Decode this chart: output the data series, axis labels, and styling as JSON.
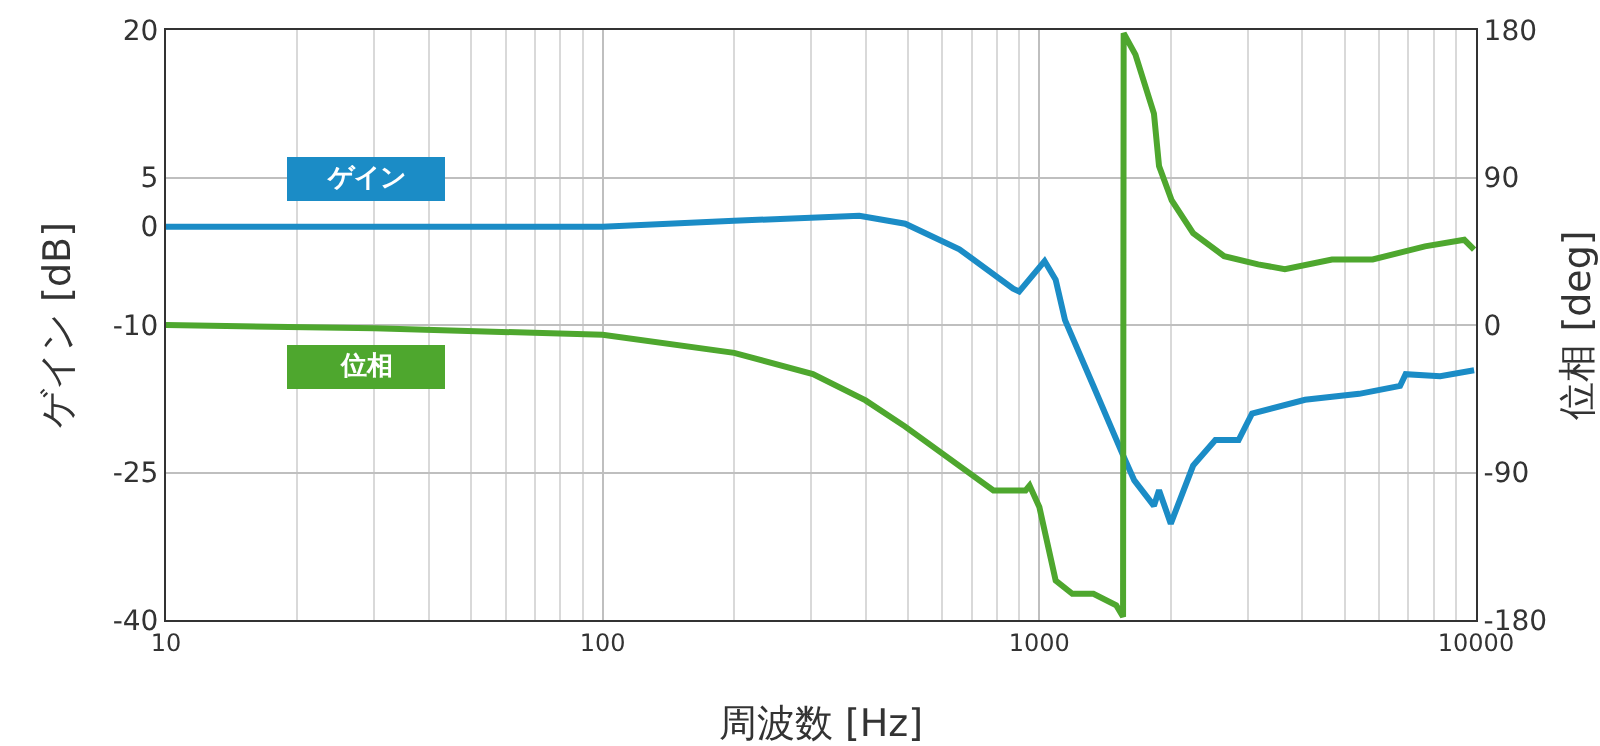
{
  "chart_data": {
    "type": "line",
    "xlabel": "周波数 [Hz]",
    "ylabel": "ゲイン [dB]",
    "y2label": "位相 [deg]",
    "log": "x",
    "grid": true,
    "marker": "none",
    "line_style": "solid",
    "xlim": [
      10,
      10000
    ],
    "xticks": [
      10,
      100,
      1000,
      10000
    ],
    "ylim": [
      -40,
      20
    ],
    "yticks": [
      20,
      5,
      0,
      -10,
      -25,
      -40
    ],
    "y2lim": [
      -180,
      180
    ],
    "y2ticks": [
      180,
      90,
      0,
      -90,
      -180
    ],
    "series": [
      {
        "name": "ゲイン",
        "color": "#1b8cc6",
        "x": [
          10,
          30,
          100,
          200,
          387,
          493,
          656,
          871,
          899,
          1028,
          1090,
          1145,
          1330,
          1550,
          1650,
          1830,
          1880,
          2000,
          2250,
          2530,
          2860,
          3070,
          4060,
          5400,
          6700,
          6900,
          8280,
          9900
        ],
        "values": [
          0,
          0,
          0,
          0.6,
          1.1,
          0.3,
          -2.3,
          -6.3,
          -6.6,
          -3.5,
          -5.4,
          -9.5,
          -16.2,
          -23.1,
          -25.8,
          -28.4,
          -26.8,
          -30.2,
          -24.3,
          -21.7,
          -21.7,
          -19,
          -17.6,
          -17,
          -16.2,
          -15,
          -15.2,
          -14.6
        ]
      },
      {
        "name": "位相",
        "color": "#4ea72e",
        "axis": "y2",
        "x": [
          10,
          30,
          100,
          200,
          303,
          400,
          493,
          656,
          785,
          930,
          950,
          1000,
          1090,
          1190,
          1330,
          1500,
          1555,
          1560,
          1660,
          1830,
          1880,
          2010,
          2250,
          2650,
          3170,
          3650,
          4680,
          5800,
          7640,
          9400,
          9900
        ],
        "values": [
          0,
          -2,
          -6,
          -17,
          -30,
          -46,
          -62,
          -86,
          -101,
          -101,
          -98,
          -111,
          -156,
          -164,
          -164,
          -171,
          -178,
          178,
          165,
          129,
          97,
          76,
          56,
          42,
          37,
          34,
          40,
          40,
          48,
          52,
          46
        ]
      }
    ]
  }
}
